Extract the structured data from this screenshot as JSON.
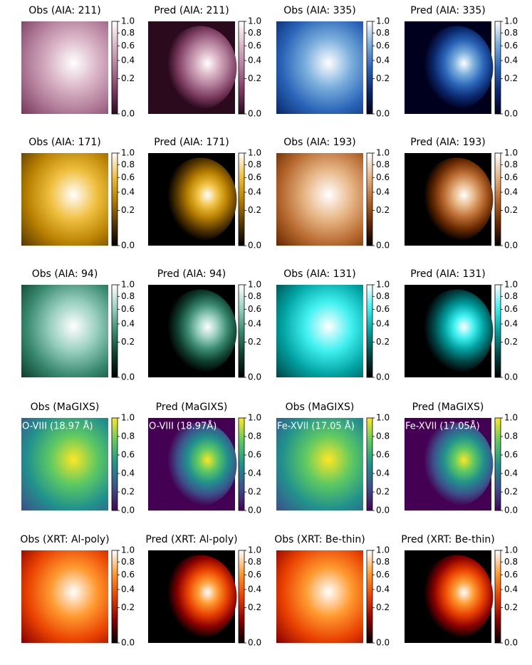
{
  "chart_data": [
    {
      "type": "image",
      "title": "Obs (AIA: 211)",
      "colormap": [
        "#2b0a1e",
        "#7a3a5e",
        "#b07a98",
        "#dcb8c8",
        "#ffffff"
      ],
      "clim": [
        0,
        1
      ],
      "scale": "power",
      "gamma": 0.6,
      "cticks": [
        {
          "value": 0,
          "label": "0.0"
        },
        0.2,
        0.4,
        0.6,
        0.8,
        {
          "value": 1,
          "label": "1.0"
        }
      ]
    },
    {
      "type": "image",
      "title": "Pred (AIA: 211)",
      "colormap": [
        "#2b0a1e",
        "#7a3a5e",
        "#b07a98",
        "#dcb8c8",
        "#ffffff"
      ],
      "clim": [
        0,
        1
      ],
      "scale": "power",
      "gamma": 0.6,
      "cticks": [
        {
          "value": 0,
          "label": "0.0"
        },
        0.2,
        0.4,
        0.6,
        0.8,
        {
          "value": 1,
          "label": "1.0"
        }
      ]
    },
    {
      "type": "image",
      "title": "Obs (AIA: 335)",
      "colormap": [
        "#00001e",
        "#0a2a6e",
        "#2a64b8",
        "#7aaedc",
        "#ffffff"
      ],
      "clim": [
        0,
        1
      ],
      "scale": "power",
      "gamma": 0.6,
      "cticks": [
        {
          "value": 0,
          "label": "0.0"
        },
        0.2,
        0.4,
        0.6,
        0.8,
        {
          "value": 1,
          "label": "1.0"
        }
      ]
    },
    {
      "type": "image",
      "title": "Pred (AIA: 335)",
      "colormap": [
        "#00001e",
        "#0a2a6e",
        "#2a64b8",
        "#7aaedc",
        "#ffffff"
      ],
      "clim": [
        0,
        1
      ],
      "scale": "power",
      "gamma": 0.6,
      "cticks": [
        {
          "value": 0,
          "label": "0.0"
        },
        0.2,
        0.4,
        0.6,
        0.8,
        {
          "value": 1,
          "label": "1.0"
        }
      ]
    },
    {
      "type": "image",
      "title": "Obs (AIA: 171)",
      "colormap": [
        "#000000",
        "#5a3a00",
        "#b88000",
        "#f0c040",
        "#ffffff"
      ],
      "clim": [
        0,
        1
      ],
      "scale": "power",
      "gamma": 0.6,
      "cticks": [
        {
          "value": 0,
          "label": "0.0"
        },
        0.2,
        0.4,
        0.6,
        0.8,
        {
          "value": 1,
          "label": "1.0"
        }
      ]
    },
    {
      "type": "image",
      "title": "Pred (AIA: 171)",
      "colormap": [
        "#000000",
        "#5a3a00",
        "#b88000",
        "#f0c040",
        "#ffffff"
      ],
      "clim": [
        0,
        1
      ],
      "scale": "power",
      "gamma": 0.6,
      "cticks": [
        {
          "value": 0,
          "label": "0.0"
        },
        0.2,
        0.4,
        0.6,
        0.8,
        {
          "value": 1,
          "label": "1.0"
        }
      ]
    },
    {
      "type": "image",
      "title": "Obs (AIA: 193)",
      "colormap": [
        "#000000",
        "#6a2a00",
        "#b86a30",
        "#e8b888",
        "#ffffff"
      ],
      "clim": [
        0,
        1
      ],
      "scale": "power",
      "gamma": 0.6,
      "cticks": [
        {
          "value": 0,
          "label": "0.0"
        },
        0.2,
        0.4,
        0.6,
        0.8,
        {
          "value": 1,
          "label": "1.0"
        }
      ]
    },
    {
      "type": "image",
      "title": "Pred (AIA: 193)",
      "colormap": [
        "#000000",
        "#6a2a00",
        "#b86a30",
        "#e8b888",
        "#ffffff"
      ],
      "clim": [
        0,
        1
      ],
      "scale": "power",
      "gamma": 0.6,
      "cticks": [
        {
          "value": 0,
          "label": "0.0"
        },
        0.2,
        0.4,
        0.6,
        0.8,
        {
          "value": 1,
          "label": "1.0"
        }
      ]
    },
    {
      "type": "image",
      "title": "Obs (AIA: 94)",
      "colormap": [
        "#000000",
        "#0e4030",
        "#3a8a70",
        "#9ad0c0",
        "#ffffff"
      ],
      "clim": [
        0,
        1
      ],
      "scale": "power",
      "gamma": 0.6,
      "cticks": [
        {
          "value": 0,
          "label": "0.0"
        },
        0.2,
        0.4,
        0.6,
        0.8,
        {
          "value": 1,
          "label": "1.0"
        }
      ]
    },
    {
      "type": "image",
      "title": "Pred (AIA: 94)",
      "colormap": [
        "#000000",
        "#0e4030",
        "#3a8a70",
        "#9ad0c0",
        "#ffffff"
      ],
      "clim": [
        0,
        1
      ],
      "scale": "power",
      "gamma": 0.6,
      "cticks": [
        {
          "value": 0,
          "label": "0.0"
        },
        0.2,
        0.4,
        0.6,
        0.8,
        {
          "value": 1,
          "label": "1.0"
        }
      ]
    },
    {
      "type": "image",
      "title": "Obs (AIA: 131)",
      "colormap": [
        "#000000",
        "#004848",
        "#00a0a0",
        "#40f0f0",
        "#ffffff"
      ],
      "clim": [
        0,
        1
      ],
      "scale": "power",
      "gamma": 0.6,
      "cticks": [
        {
          "value": 0,
          "label": "0.0"
        },
        0.2,
        0.4,
        0.6,
        0.8,
        {
          "value": 1,
          "label": "1.0"
        }
      ]
    },
    {
      "type": "image",
      "title": "Pred (AIA: 131)",
      "colormap": [
        "#000000",
        "#004848",
        "#00a0a0",
        "#40f0f0",
        "#ffffff"
      ],
      "clim": [
        0,
        1
      ],
      "scale": "power",
      "gamma": 0.6,
      "cticks": [
        {
          "value": 0,
          "label": "0.0"
        },
        0.2,
        0.4,
        0.6,
        0.8,
        {
          "value": 1,
          "label": "1.0"
        }
      ]
    },
    {
      "type": "image",
      "title": "Obs (MaGIXS)",
      "annotation": "O-VIII (18.97 Å)",
      "colormap": [
        "#440154",
        "#3b528b",
        "#21918c",
        "#5ec962",
        "#fde725"
      ],
      "clim": [
        0,
        1
      ],
      "scale": "linear",
      "cticks": [
        {
          "value": 0,
          "label": "0.0"
        },
        0.2,
        0.4,
        0.6,
        0.8,
        {
          "value": 1,
          "label": "1.0"
        }
      ]
    },
    {
      "type": "image",
      "title": "Pred (MaGIXS)",
      "annotation": "O-VIII (18.97Å)",
      "colormap": [
        "#440154",
        "#3b528b",
        "#21918c",
        "#5ec962",
        "#fde725"
      ],
      "clim": [
        0,
        1
      ],
      "scale": "linear",
      "cticks": [
        {
          "value": 0,
          "label": "0.0"
        },
        0.2,
        0.4,
        0.6,
        0.8,
        {
          "value": 1,
          "label": "1.0"
        }
      ]
    },
    {
      "type": "image",
      "title": "Obs (MaGIXS)",
      "annotation": "Fe-XVII (17.05 Å)",
      "colormap": [
        "#440154",
        "#3b528b",
        "#21918c",
        "#5ec962",
        "#fde725"
      ],
      "clim": [
        0,
        1
      ],
      "scale": "linear",
      "cticks": [
        {
          "value": 0,
          "label": "0.0"
        },
        0.2,
        0.4,
        0.6,
        0.8,
        {
          "value": 1,
          "label": "1.0"
        }
      ]
    },
    {
      "type": "image",
      "title": "Pred (MaGIXS)",
      "annotation": "Fe-XVII (17.05Å)",
      "colormap": [
        "#440154",
        "#3b528b",
        "#21918c",
        "#5ec962",
        "#fde725"
      ],
      "clim": [
        0,
        1
      ],
      "scale": "linear",
      "cticks": [
        {
          "value": 0,
          "label": "0.0"
        },
        0.2,
        0.4,
        0.6,
        0.8,
        {
          "value": 1,
          "label": "1.0"
        }
      ]
    },
    {
      "type": "image",
      "title": "Obs (XRT: Al-poly)",
      "colormap": [
        "#000000",
        "#8a0000",
        "#e84000",
        "#ff9a30",
        "#ffffff"
      ],
      "clim": [
        0,
        1
      ],
      "scale": "power",
      "gamma": 0.6,
      "cticks": [
        {
          "value": 0,
          "label": "0.0"
        },
        0.2,
        0.4,
        0.6,
        0.8,
        {
          "value": 1,
          "label": "1.0"
        }
      ]
    },
    {
      "type": "image",
      "title": "Pred (XRT: Al-poly)",
      "colormap": [
        "#000000",
        "#8a0000",
        "#e84000",
        "#ff9a30",
        "#ffffff"
      ],
      "clim": [
        0,
        1
      ],
      "scale": "power",
      "gamma": 0.6,
      "cticks": [
        {
          "value": 0,
          "label": "0.0"
        },
        0.2,
        0.4,
        0.6,
        0.8,
        {
          "value": 1,
          "label": "1.0"
        }
      ]
    },
    {
      "type": "image",
      "title": "Obs (XRT: Be-thin)",
      "colormap": [
        "#000000",
        "#8a0000",
        "#e84000",
        "#ff9a30",
        "#ffffff"
      ],
      "clim": [
        0,
        1
      ],
      "scale": "power",
      "gamma": 0.6,
      "cticks": [
        {
          "value": 0,
          "label": "0.0"
        },
        0.2,
        0.4,
        0.6,
        0.8,
        {
          "value": 1,
          "label": "1.0"
        }
      ]
    },
    {
      "type": "image",
      "title": "Pred (XRT: Be-thin)",
      "colormap": [
        "#000000",
        "#8a0000",
        "#e84000",
        "#ff9a30",
        "#ffffff"
      ],
      "clim": [
        0,
        1
      ],
      "scale": "power",
      "gamma": 0.6,
      "cticks": [
        {
          "value": 0,
          "label": "0.0"
        },
        0.2,
        0.4,
        0.6,
        0.8,
        {
          "value": 1,
          "label": "1.0"
        }
      ]
    }
  ]
}
